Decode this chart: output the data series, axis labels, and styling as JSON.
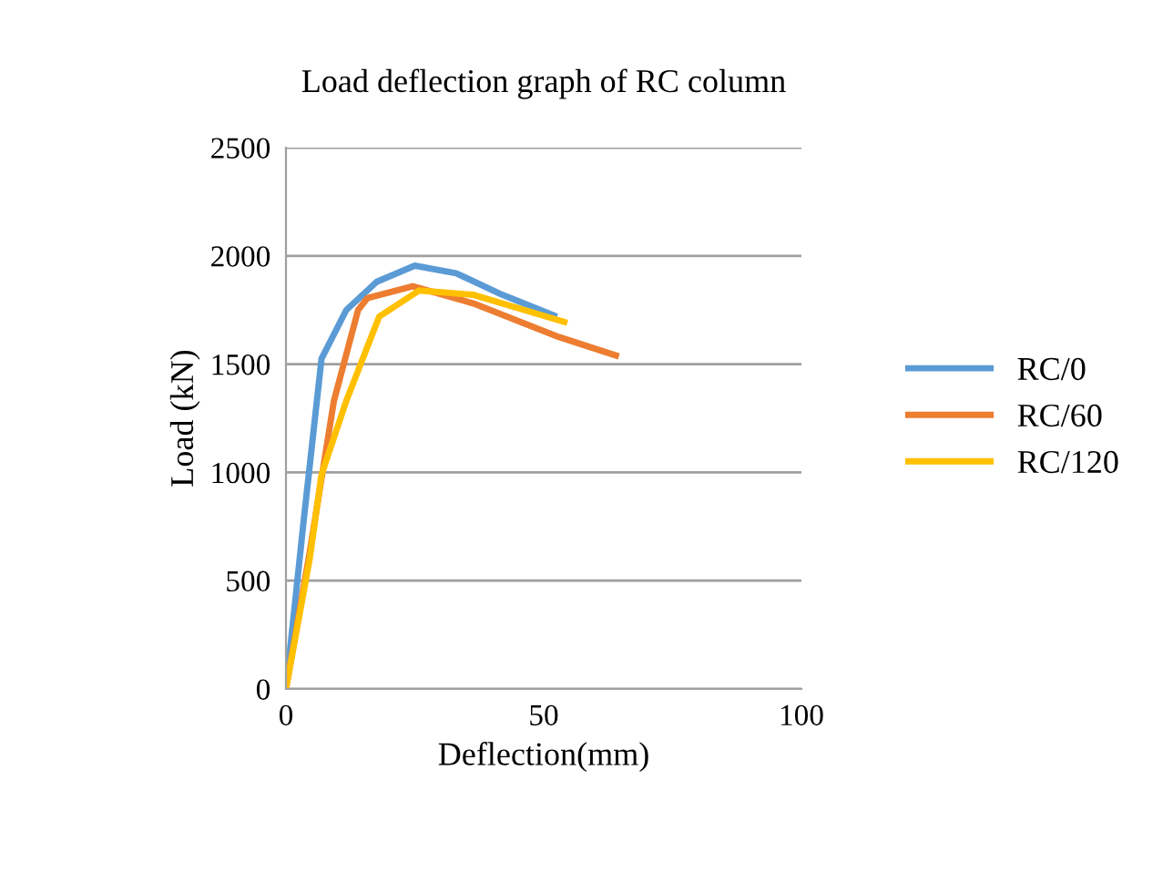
{
  "chart_data": {
    "type": "line",
    "title": "Load deflection graph of RC column",
    "xlabel": "Deflection(mm)",
    "ylabel": "Load (kN)",
    "xlim": [
      0,
      100
    ],
    "xticks": [
      0,
      50,
      100
    ],
    "ylim": [
      0,
      2500
    ],
    "yticks": [
      0,
      500,
      1000,
      1500,
      2000,
      2500
    ],
    "grid": "y",
    "legend": "right",
    "marker": "none",
    "line_style": "solid",
    "series": [
      {
        "name": "RC/0",
        "color": "#5b9bd5",
        "x": [
          0,
          3.4,
          6.9,
          11.7,
          17.6,
          25,
          33,
          42,
          52
        ],
        "values": [
          0,
          770,
          1525,
          1750,
          1880,
          1955,
          1920,
          1820,
          1725
        ]
      },
      {
        "name": "RC/60",
        "color": "#ed7d31",
        "x": [
          0,
          4.6,
          9.3,
          14,
          15.8,
          24.6,
          36.4,
          53,
          64
        ],
        "values": [
          0,
          630,
          1330,
          1750,
          1805,
          1860,
          1780,
          1625,
          1540
        ]
      },
      {
        "name": "RC/120",
        "color": "#ffc000",
        "x": [
          0,
          4.6,
          6.9,
          11.7,
          18.1,
          25.8,
          36.4,
          54
        ],
        "values": [
          0,
          600,
          990,
          1330,
          1720,
          1840,
          1820,
          1695
        ]
      }
    ]
  }
}
